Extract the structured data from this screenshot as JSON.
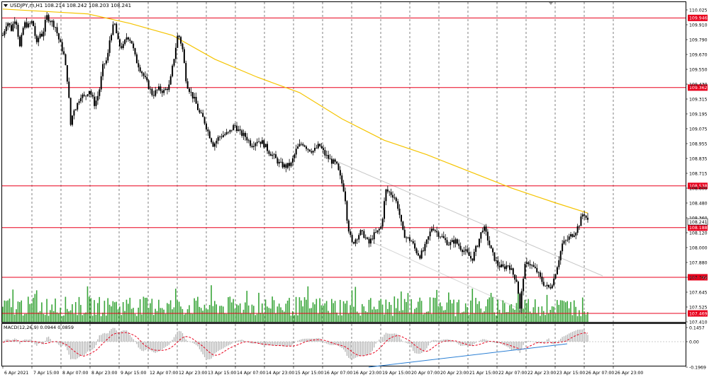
{
  "window": {
    "symbol_info": "USDJPY,m,H1  108.214 108.242 108.203 108.241",
    "price_axis_labels": [
      "110.025",
      "109.910",
      "109.790",
      "109.670",
      "109.550",
      "109.430",
      "109.315",
      "109.195",
      "109.075",
      "108.955",
      "108.835",
      "108.715",
      "108.600",
      "108.480",
      "108.360",
      "108.120",
      "108.000",
      "107.880",
      "107.760",
      "107.645",
      "107.525",
      "107.410"
    ],
    "level_labels": [
      "109.946",
      "109.362",
      "108.538",
      "108.188",
      "107.772",
      "107.469"
    ],
    "current_price": "108.241",
    "macd_label": "MACD(12,26,9) 0.0944 0.0859",
    "macd_axis_labels": [
      "0.1457",
      "0.00",
      "-0.1969"
    ],
    "time_labels": [
      "6 Apr 2021",
      "7 Apr 15:00",
      "8 Apr 07:00",
      "8 Apr 23:00",
      "9 Apr 15:00",
      "12 Apr 07:00",
      "12 Apr 23:00",
      "13 Apr 15:00",
      "14 Apr 07:00",
      "14 Apr 23:00",
      "15 Apr 15:00",
      "16 Apr 07:00",
      "16 Apr 23:00",
      "19 Apr 15:00",
      "20 Apr 07:00",
      "20 Apr 23:00",
      "21 Apr 15:00",
      "22 Apr 07:00",
      "22 Apr 23:00",
      "23 Apr 15:00",
      "26 Apr 07:00",
      "26 Apr 23:00"
    ]
  },
  "colors": {
    "background": "#ffffff",
    "candle": "#000000",
    "moving_average": "#f5c400",
    "level_line": "#e8001c",
    "volume": "#3aa53a",
    "macd_histogram": "#b3b3b3",
    "macd_signal": "#e8001c",
    "trendline": "#2a7fd4",
    "grid": "#000000"
  },
  "chart_data": {
    "type": "candlestick",
    "title": "",
    "symbol": "USDJPY,m",
    "timeframe": "H1",
    "ohlc_shown": {
      "open": 108.214,
      "high": 108.242,
      "low": 108.203,
      "close": 108.241
    },
    "ylim": [
      107.41,
      110.025
    ],
    "horizontal_levels": [
      109.946,
      109.362,
      108.538,
      108.188,
      107.772,
      107.469
    ],
    "price_path": [
      [
        0,
        109.8
      ],
      [
        6,
        109.92
      ],
      [
        12,
        109.85
      ],
      [
        18,
        109.96
      ],
      [
        24,
        109.7
      ],
      [
        30,
        109.9
      ],
      [
        36,
        109.88
      ],
      [
        42,
        109.92
      ],
      [
        48,
        109.72
      ],
      [
        52,
        109.82
      ],
      [
        56,
        109.8
      ],
      [
        62,
        109.96
      ],
      [
        68,
        109.92
      ],
      [
        74,
        109.88
      ],
      [
        80,
        109.75
      ],
      [
        86,
        109.65
      ],
      [
        92,
        109.4
      ],
      [
        96,
        109.05
      ],
      [
        100,
        109.18
      ],
      [
        104,
        109.2
      ],
      [
        110,
        109.3
      ],
      [
        116,
        109.28
      ],
      [
        122,
        109.35
      ],
      [
        130,
        109.22
      ],
      [
        136,
        109.32
      ],
      [
        142,
        109.55
      ],
      [
        148,
        109.6
      ],
      [
        152,
        109.8
      ],
      [
        158,
        109.9
      ],
      [
        164,
        109.72
      ],
      [
        170,
        109.7
      ],
      [
        176,
        109.8
      ],
      [
        182,
        109.75
      ],
      [
        188,
        109.6
      ],
      [
        196,
        109.5
      ],
      [
        204,
        109.4
      ],
      [
        212,
        109.3
      ],
      [
        220,
        109.35
      ],
      [
        228,
        109.33
      ],
      [
        236,
        109.38
      ],
      [
        242,
        109.6
      ],
      [
        248,
        109.82
      ],
      [
        254,
        109.7
      ],
      [
        260,
        109.4
      ],
      [
        266,
        109.32
      ],
      [
        272,
        109.25
      ],
      [
        278,
        109.15
      ],
      [
        284,
        109.1
      ],
      [
        290,
        109.0
      ],
      [
        298,
        108.88
      ],
      [
        306,
        108.95
      ],
      [
        314,
        108.97
      ],
      [
        320,
        108.98
      ],
      [
        328,
        109.05
      ],
      [
        336,
        108.98
      ],
      [
        344,
        108.95
      ],
      [
        352,
        108.88
      ],
      [
        360,
        108.92
      ],
      [
        368,
        108.9
      ],
      [
        376,
        108.83
      ],
      [
        384,
        108.78
      ],
      [
        392,
        108.72
      ],
      [
        400,
        108.7
      ],
      [
        408,
        108.72
      ],
      [
        416,
        108.85
      ],
      [
        424,
        108.9
      ],
      [
        432,
        108.85
      ],
      [
        440,
        108.83
      ],
      [
        448,
        108.88
      ],
      [
        456,
        108.8
      ],
      [
        464,
        108.75
      ],
      [
        472,
        108.72
      ],
      [
        478,
        108.6
      ],
      [
        484,
        108.48
      ],
      [
        488,
        108.22
      ],
      [
        494,
        108.05
      ],
      [
        500,
        108.1
      ],
      [
        506,
        108.15
      ],
      [
        512,
        108.12
      ],
      [
        518,
        108.05
      ],
      [
        524,
        108.12
      ],
      [
        530,
        108.15
      ],
      [
        536,
        108.2
      ],
      [
        542,
        108.5
      ],
      [
        548,
        108.48
      ],
      [
        554,
        108.45
      ],
      [
        560,
        108.35
      ],
      [
        566,
        108.15
      ],
      [
        572,
        108.1
      ],
      [
        578,
        108.08
      ],
      [
        584,
        108.0
      ],
      [
        590,
        107.95
      ],
      [
        596,
        108.0
      ],
      [
        602,
        108.1
      ],
      [
        608,
        108.2
      ],
      [
        614,
        108.15
      ],
      [
        620,
        108.12
      ],
      [
        626,
        108.08
      ],
      [
        632,
        108.05
      ],
      [
        640,
        108.08
      ],
      [
        648,
        108.02
      ],
      [
        656,
        107.98
      ],
      [
        664,
        107.92
      ],
      [
        672,
        108.05
      ],
      [
        680,
        108.2
      ],
      [
        686,
        108.1
      ],
      [
        692,
        107.98
      ],
      [
        700,
        107.88
      ],
      [
        708,
        107.85
      ],
      [
        716,
        107.88
      ],
      [
        722,
        107.8
      ],
      [
        728,
        107.74
      ],
      [
        732,
        107.5
      ],
      [
        738,
        107.85
      ],
      [
        744,
        107.9
      ],
      [
        750,
        107.86
      ],
      [
        756,
        107.82
      ],
      [
        762,
        107.75
      ],
      [
        768,
        107.7
      ],
      [
        774,
        107.68
      ],
      [
        780,
        107.76
      ],
      [
        786,
        107.9
      ],
      [
        792,
        108.05
      ],
      [
        798,
        108.08
      ],
      [
        804,
        108.12
      ],
      [
        810,
        108.15
      ],
      [
        816,
        108.22
      ],
      [
        822,
        108.32
      ],
      [
        828,
        108.24
      ]
    ],
    "moving_average": [
      [
        0,
        110.02
      ],
      [
        60,
        110.0
      ],
      [
        120,
        109.98
      ],
      [
        180,
        109.9
      ],
      [
        240,
        109.8
      ],
      [
        300,
        109.6
      ],
      [
        360,
        109.45
      ],
      [
        420,
        109.32
      ],
      [
        480,
        109.1
      ],
      [
        540,
        108.92
      ],
      [
        600,
        108.8
      ],
      [
        660,
        108.66
      ],
      [
        720,
        108.52
      ],
      [
        780,
        108.4
      ],
      [
        828,
        108.31
      ]
    ],
    "macd_ylim": [
      -0.1969,
      0.1457
    ],
    "macd_values": [
      0.0944,
      0.0859
    ]
  }
}
